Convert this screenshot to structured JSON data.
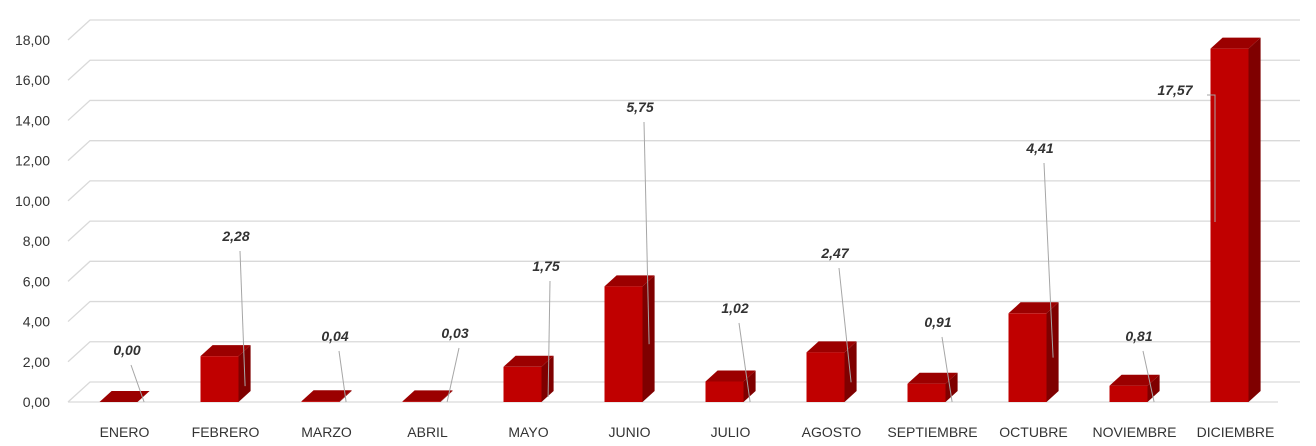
{
  "chart_data": {
    "type": "bar",
    "title": "",
    "xlabel": "",
    "ylabel": "",
    "categories": [
      "ENERO",
      "FEBRERO",
      "MARZO",
      "ABRIL",
      "MAYO",
      "JUNIO",
      "JULIO",
      "AGOSTO",
      "SEPTIEMBRE",
      "OCTUBRE",
      "NOVIEMBRE",
      "DICIEMBRE"
    ],
    "values": [
      0.0,
      2.28,
      0.04,
      0.03,
      1.75,
      5.75,
      1.02,
      2.47,
      0.91,
      4.41,
      0.81,
      17.57
    ],
    "data_labels": [
      "0,00",
      "2,28",
      "0,04",
      "0,03",
      "1,75",
      "5,75",
      "1,02",
      "2,47",
      "0,91",
      "4,41",
      "0,81",
      "17,57"
    ],
    "ylim": [
      0,
      18
    ],
    "yticks": [
      "0,00",
      "2,00",
      "4,00",
      "6,00",
      "8,00",
      "10,00",
      "12,00",
      "14,00",
      "16,00",
      "18,00"
    ],
    "grid": true,
    "legend": "none",
    "colors": {
      "bar_front": "#c00000",
      "bar_side": "#7f0000",
      "bar_top": "#9b0000",
      "grid": "#d9d9d9",
      "leader": "#a6a6a6"
    }
  }
}
